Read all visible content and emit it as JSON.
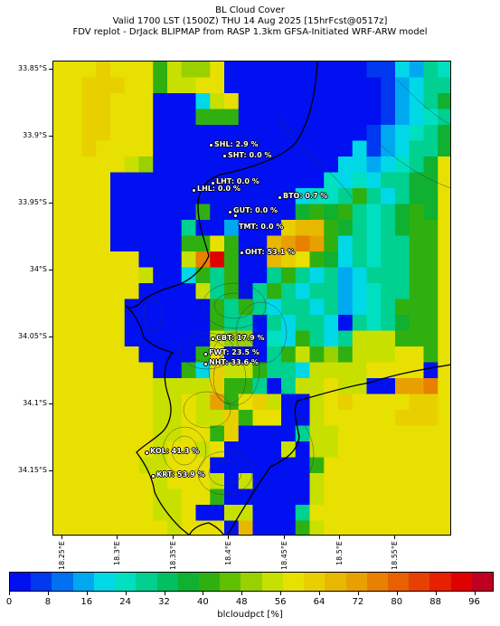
{
  "header": {
    "line1": "BL Cloud Cover",
    "line2": "Valid 1700 LST (1500Z) THU 14 Aug 2025 [15hrFcst@0517z]",
    "line3": "FDV replot - DrJack BLIPMAP from RASP 1.3km GFSA-Initiated WRF-ARW model"
  },
  "axes": {
    "lat_labels": [
      "33.85°S",
      "33.9°S",
      "33.95°S",
      "34°S",
      "34.05°S",
      "34.1°S",
      "34.15°S"
    ],
    "lon_labels": [
      "18.25°E",
      "18.3°E",
      "18.35°E",
      "18.4°E",
      "18.45°E",
      "18.5°E",
      "18.55°E"
    ]
  },
  "stations": [
    {
      "label": "SHL: 2.9 %"
    },
    {
      "label": "SHT: 0.0 %"
    },
    {
      "label": "LHT: 0.0 %"
    },
    {
      "label": "LHL: 0.0 %"
    },
    {
      "label": "BTO: 0.7 %"
    },
    {
      "label": "GUT: 0.0 %"
    },
    {
      "label": "TMT: 0.0 %"
    },
    {
      "label": "OHT: 53.1 %"
    },
    {
      "label": "CBT: 17.9 %"
    },
    {
      "label": "FWT: 23.5 %"
    },
    {
      "label": "NHT: 33.6 %"
    },
    {
      "label": "KOL: 41.3 %"
    },
    {
      "label": "KRT: 53.9 %"
    }
  ],
  "colorbar": {
    "title": "blcloudpct [%]",
    "tick_labels": [
      "0",
      "8",
      "16",
      "24",
      "32",
      "40",
      "48",
      "56",
      "64",
      "72",
      "80",
      "88",
      "96"
    ],
    "colors": [
      "#0010f0",
      "#0038f0",
      "#0070f0",
      "#00a8f0",
      "#00d8e8",
      "#00e0c0",
      "#00d090",
      "#00c060",
      "#10b030",
      "#30b010",
      "#60c000",
      "#98d000",
      "#c8e000",
      "#e8e000",
      "#e8d000",
      "#e8b800",
      "#e8a000",
      "#e88000",
      "#e86000",
      "#e84000",
      "#e82000",
      "#e00000",
      "#c00020"
    ]
  }
}
